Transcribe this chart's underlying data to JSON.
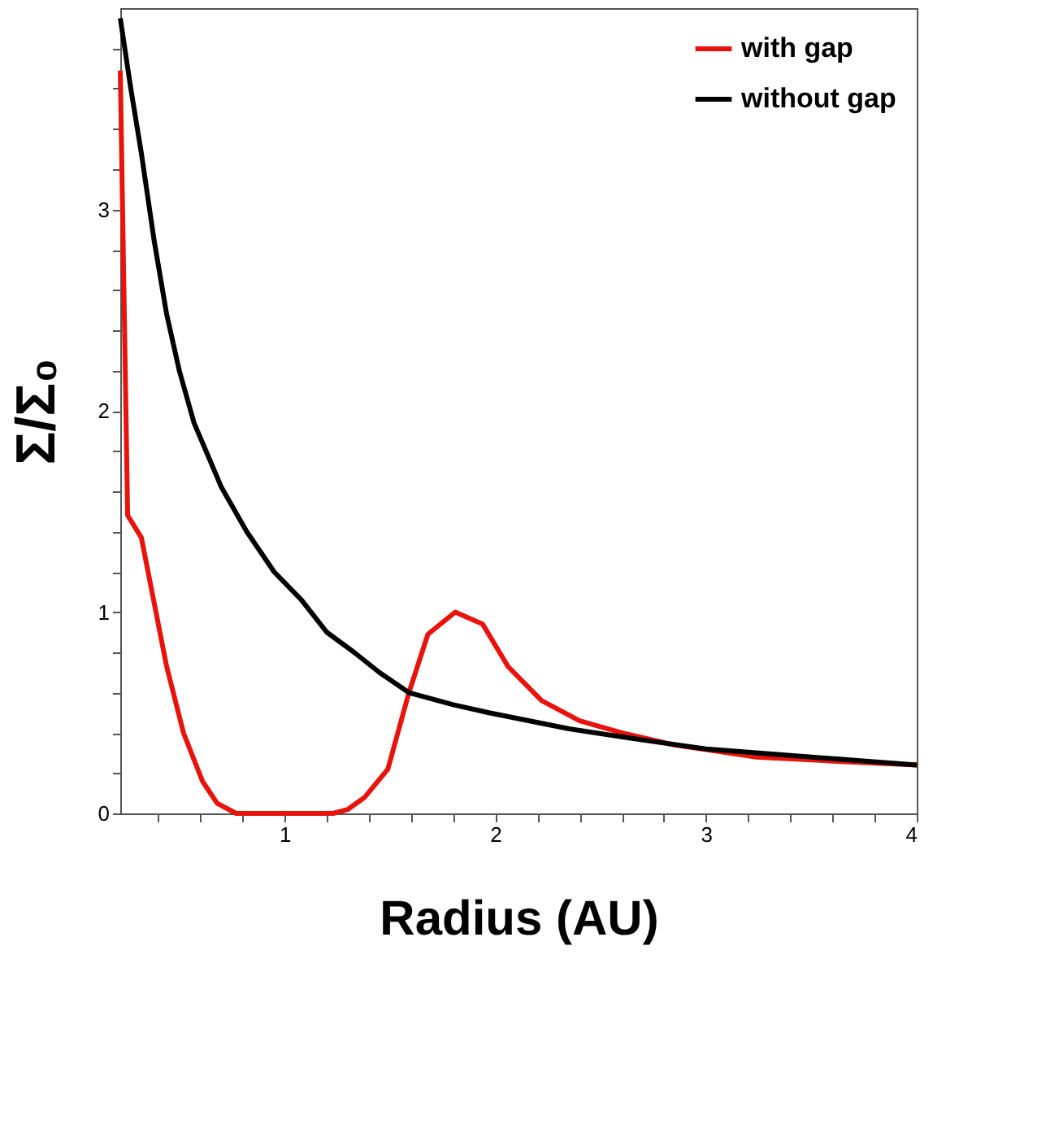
{
  "chart_data": {
    "type": "line",
    "xlabel": "Radius (AU)",
    "ylabel": "Σ/Σ₀",
    "x": [
      0.22,
      0.255,
      0.32,
      0.38,
      0.44,
      0.52,
      0.61,
      0.68,
      0.77,
      1.0,
      1.23,
      1.3,
      1.38,
      1.49,
      1.59,
      1.68,
      1.81,
      1.94,
      2.06,
      2.22,
      2.4,
      2.6,
      2.85,
      3.24,
      3.6,
      4.0
    ],
    "series": [
      {
        "name": "with gap",
        "color": "#e8130c",
        "values": [
          3.69,
          1.48,
          1.37,
          1.05,
          0.73,
          0.4,
          0.16,
          0.05,
          0,
          0,
          0,
          0.02,
          0.08,
          0.22,
          0.6,
          0.89,
          1.0,
          0.94,
          0.73,
          0.56,
          0.46,
          0.4,
          0.34,
          0.28,
          0.26,
          0.24
        ]
      },
      {
        "name": "without gap",
        "color": "#000000",
        "x": [
          0.22,
          0.27,
          0.32,
          0.38,
          0.44,
          0.5,
          0.57,
          0.7,
          0.82,
          0.95,
          1.08,
          1.2,
          1.33,
          1.45,
          1.59,
          1.8,
          1.97,
          2.35,
          2.73,
          3.0,
          3.5,
          4.0
        ],
        "values": [
          3.95,
          3.6,
          3.28,
          2.85,
          2.48,
          2.2,
          1.94,
          1.62,
          1.4,
          1.2,
          1.06,
          0.9,
          0.8,
          0.7,
          0.6,
          0.54,
          0.5,
          0.42,
          0.36,
          0.32,
          0.28,
          0.24
        ]
      }
    ],
    "xlim": [
      0.22,
      4
    ],
    "ylim": [
      0,
      4
    ],
    "xticks": [
      {
        "value": 0.4,
        "label": null
      },
      {
        "value": 0.6,
        "label": null
      },
      {
        "value": 0.8,
        "label": null
      },
      1,
      {
        "value": 1.2,
        "label": null
      },
      {
        "value": 1.4,
        "label": null
      },
      {
        "value": 1.6,
        "label": null
      },
      {
        "value": 1.8,
        "label": null
      },
      2,
      {
        "value": 2.2,
        "label": null
      },
      {
        "value": 2.4,
        "label": null
      },
      {
        "value": 2.6,
        "label": null
      },
      {
        "value": 2.8,
        "label": null
      },
      3,
      {
        "value": 3.2,
        "label": null
      },
      {
        "value": 3.4,
        "label": null
      },
      {
        "value": 3.6,
        "label": null
      },
      {
        "value": 3.8,
        "label": null
      },
      4
    ],
    "yticks": [
      0,
      {
        "value": 0.2,
        "label": null
      },
      {
        "value": 0.4,
        "label": null
      },
      {
        "value": 0.6,
        "label": null
      },
      {
        "value": 0.8,
        "label": null
      },
      1,
      {
        "value": 1.2,
        "label": null
      },
      {
        "value": 1.4,
        "label": null
      },
      {
        "value": 1.6,
        "label": null
      },
      {
        "value": 1.8,
        "label": null
      },
      2,
      {
        "value": 2.2,
        "label": null
      },
      {
        "value": 2.4,
        "label": null
      },
      {
        "value": 2.6,
        "label": null
      },
      {
        "value": 2.8,
        "label": null
      },
      3,
      {
        "value": 3.2,
        "label": null
      },
      {
        "value": 3.4,
        "label": null
      },
      {
        "value": 3.6,
        "label": null
      },
      {
        "value": 3.8,
        "label": null
      }
    ],
    "grid": false,
    "legend": "top right",
    "marker": "none",
    "line_style": "solid"
  }
}
